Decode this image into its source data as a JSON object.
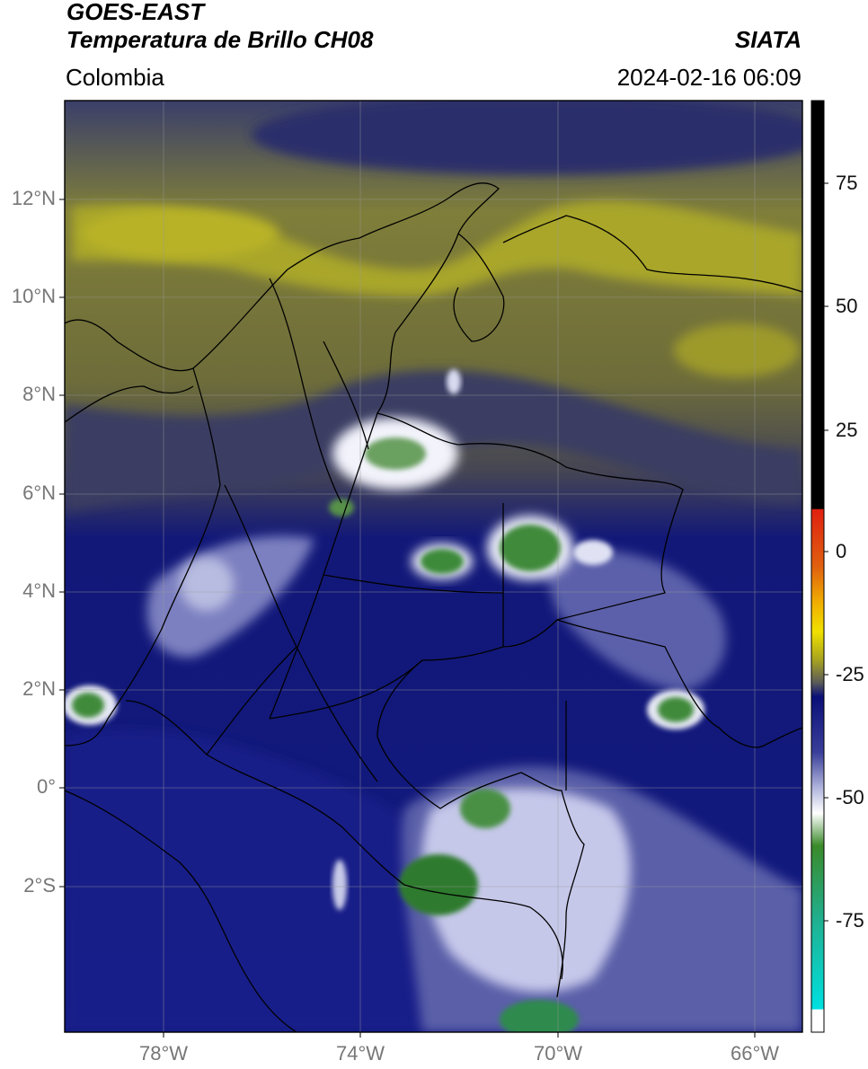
{
  "header": {
    "satellite": "GOES-EAST",
    "product": "Temperatura de Brillo CH08",
    "institution": "SIATA",
    "region": "Colombia",
    "datetime": "2024-02-16 06:09"
  },
  "map": {
    "lon_range": [
      -80,
      -65
    ],
    "lat_range": [
      -5.1,
      14
    ],
    "lat_ticks": [
      "12°N",
      "10°N",
      "8°N",
      "6°N",
      "4°N",
      "2°N",
      "0°",
      "2°S"
    ],
    "lon_ticks": [
      "78°W",
      "74°W",
      "70°W",
      "66°W"
    ],
    "gridlines": true
  },
  "colorbar": {
    "range": [
      -98,
      88
    ],
    "tick_labels": [
      "75",
      "50",
      "25",
      "0",
      "-25",
      "-50",
      "-75"
    ],
    "colors": {
      "warm_black": "#000000",
      "red": "#e02010",
      "orange": "#f08a00",
      "yellow": "#f0e000",
      "olive": "#a8a420",
      "gray": "#5a5a5a",
      "navy": "#0a0f78",
      "blue": "#3a3f9a",
      "lavender": "#b8bce0",
      "white": "#ffffff",
      "green": "#3a8a2a",
      "teal": "#20b090",
      "cyan": "#00e0e0"
    }
  }
}
